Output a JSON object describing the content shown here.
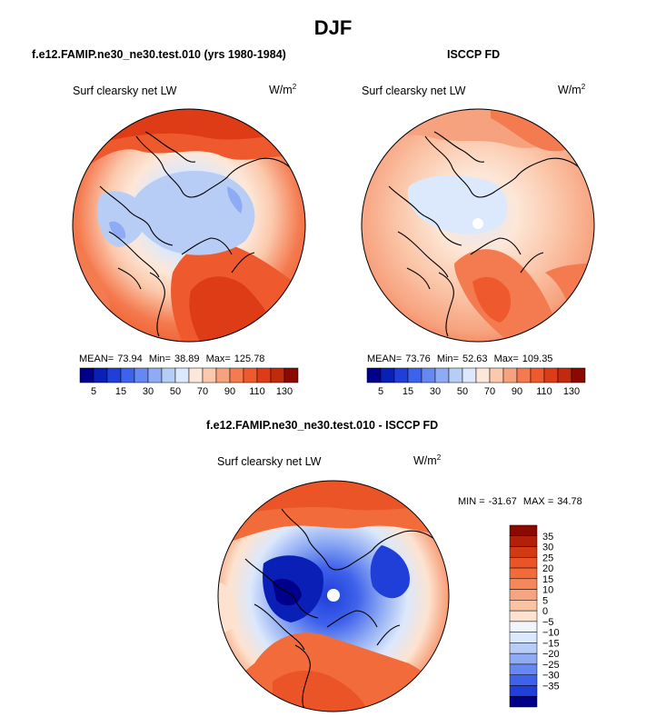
{
  "title": "DJF",
  "panels": [
    {
      "id": "model",
      "case_title": "f.e12.FAMIP.ne30_ne30.test.010 (yrs 1980-1984)",
      "variable": "Surf clearsky net LW",
      "units": "W/m",
      "units_exp": "2",
      "stats": {
        "mean_label": "MEAN=",
        "mean": "73.94",
        "min_label": "Min=",
        "min": "38.89",
        "max_label": "Max=",
        "max": "125.78"
      }
    },
    {
      "id": "obs",
      "case_title": "ISCCP FD",
      "variable": "Surf clearsky net LW",
      "units": "W/m",
      "units_exp": "2",
      "stats": {
        "mean_label": "MEAN=",
        "mean": "73.76",
        "min_label": "Min=",
        "min": "52.63",
        "max_label": "Max=",
        "max": "109.35"
      }
    },
    {
      "id": "diff",
      "case_title": "f.e12.FAMIP.ne30_ne30.test.010 - ISCCP FD",
      "variable": "Surf clearsky net LW",
      "units": "W/m",
      "units_exp": "2",
      "stats": {
        "min_label": "MIN =",
        "min": "-31.67",
        "max_label": "MAX =",
        "max": "34.78"
      }
    }
  ],
  "chart_data": [
    {
      "type": "heatmap",
      "projection": "north polar stereographic",
      "title": "Surf clearsky net LW",
      "units": "W/m^2",
      "colorbar": {
        "orientation": "horizontal",
        "tick_labels": [
          "5",
          "15",
          "30",
          "50",
          "70",
          "90",
          "110",
          "130"
        ],
        "colors": [
          "#00008b",
          "#0a1fb5",
          "#1f3fd8",
          "#3f62eb",
          "#6688f0",
          "#8fabf3",
          "#b8cdf6",
          "#dce8fb",
          "#fde7d8",
          "#fbc9ad",
          "#f7a27e",
          "#f47a4f",
          "#ee5a2e",
          "#dd3c17",
          "#c12a0c",
          "#8b0a00"
        ]
      }
    },
    {
      "type": "heatmap",
      "projection": "north polar stereographic",
      "title": "Surf clearsky net LW",
      "units": "W/m^2",
      "colorbar": {
        "orientation": "horizontal",
        "tick_labels": [
          "5",
          "15",
          "30",
          "50",
          "70",
          "90",
          "110",
          "130"
        ],
        "colors": [
          "#00008b",
          "#0a1fb5",
          "#1f3fd8",
          "#3f62eb",
          "#6688f0",
          "#8fabf3",
          "#b8cdf6",
          "#dce8fb",
          "#fde7d8",
          "#fbc9ad",
          "#f7a27e",
          "#f47a4f",
          "#ee5a2e",
          "#dd3c17",
          "#c12a0c",
          "#8b0a00"
        ]
      }
    },
    {
      "type": "heatmap",
      "projection": "north polar stereographic",
      "title": "Surf clearsky net LW",
      "units": "W/m^2",
      "colorbar": {
        "orientation": "vertical",
        "tick_labels": [
          "35",
          "30",
          "25",
          "20",
          "15",
          "10",
          "5",
          "0",
          "−5",
          "−10",
          "−15",
          "−20",
          "−25",
          "−30",
          "−35"
        ],
        "colors": [
          "#8b0a00",
          "#b3200a",
          "#d23a14",
          "#ea5426",
          "#f26b3b",
          "#f5875b",
          "#f7a57f",
          "#fac4a4",
          "#fde3cf",
          "#f2f5fb",
          "#dce8fb",
          "#b8cdf6",
          "#8fabf3",
          "#6688f0",
          "#3f62eb",
          "#1f3fd8",
          "#00008b"
        ]
      }
    }
  ]
}
